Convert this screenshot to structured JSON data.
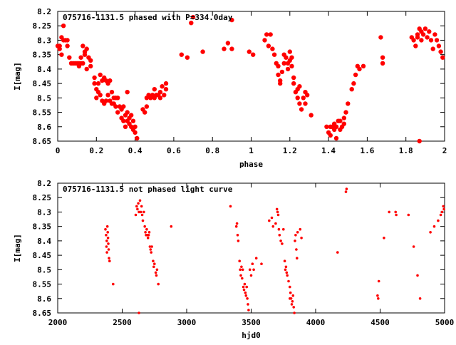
{
  "colors": {
    "points": "#ff0000",
    "axes": "#000000",
    "background": "#ffffff"
  },
  "chart_data": [
    {
      "type": "scatter",
      "title": "075716-1131.5 phased with P=334.0day",
      "xlabel": "phase",
      "ylabel": "I[mag]",
      "xlim": [
        0,
        2
      ],
      "ylim": [
        8.2,
        8.65
      ],
      "y_inverted": true,
      "grid": false,
      "legend": "none",
      "marker": "filled-circle-large",
      "x_ticks": [
        0,
        0.2,
        0.4,
        0.6,
        0.8,
        1,
        1.2,
        1.4,
        1.6,
        1.8,
        2
      ],
      "x_tick_labels": [
        "0",
        "0.2",
        "0.4",
        "0.6",
        "0.8",
        "1",
        "1.2",
        "1.4",
        "1.6",
        "1.8",
        "2"
      ],
      "y_ticks": [
        8.2,
        8.25,
        8.3,
        8.35,
        8.4,
        8.45,
        8.5,
        8.55,
        8.6,
        8.65
      ],
      "y_tick_labels": [
        "8.2",
        "8.25",
        "8.3",
        "8.35",
        "8.4",
        "8.45",
        "8.5",
        "8.55",
        "8.6",
        "8.65"
      ],
      "points": [
        [
          0.0,
          8.32
        ],
        [
          0.01,
          8.32
        ],
        [
          0.01,
          8.33
        ],
        [
          0.02,
          8.35
        ],
        [
          0.02,
          8.29
        ],
        [
          0.03,
          8.3
        ],
        [
          0.03,
          8.25
        ],
        [
          0.04,
          8.3
        ],
        [
          0.05,
          8.3
        ],
        [
          0.05,
          8.32
        ],
        [
          0.06,
          8.36
        ],
        [
          0.07,
          8.38
        ],
        [
          0.08,
          8.38
        ],
        [
          0.09,
          8.38
        ],
        [
          0.1,
          8.38
        ],
        [
          0.11,
          8.38
        ],
        [
          0.11,
          8.39
        ],
        [
          0.12,
          8.38
        ],
        [
          0.12,
          8.36
        ],
        [
          0.13,
          8.32
        ],
        [
          0.13,
          8.38
        ],
        [
          0.14,
          8.35
        ],
        [
          0.14,
          8.34
        ],
        [
          0.15,
          8.33
        ],
        [
          0.15,
          8.4
        ],
        [
          0.16,
          8.36
        ],
        [
          0.17,
          8.37
        ],
        [
          0.17,
          8.39
        ],
        [
          0.19,
          8.43
        ],
        [
          0.19,
          8.45
        ],
        [
          0.2,
          8.47
        ],
        [
          0.2,
          8.5
        ],
        [
          0.21,
          8.48
        ],
        [
          0.21,
          8.45
        ],
        [
          0.22,
          8.42
        ],
        [
          0.22,
          8.49
        ],
        [
          0.23,
          8.51
        ],
        [
          0.23,
          8.44
        ],
        [
          0.24,
          8.43
        ],
        [
          0.24,
          8.52
        ],
        [
          0.25,
          8.44
        ],
        [
          0.25,
          8.51
        ],
        [
          0.26,
          8.45
        ],
        [
          0.26,
          8.49
        ],
        [
          0.27,
          8.51
        ],
        [
          0.27,
          8.44
        ],
        [
          0.28,
          8.48
        ],
        [
          0.28,
          8.52
        ],
        [
          0.29,
          8.5
        ],
        [
          0.29,
          8.52
        ],
        [
          0.3,
          8.53
        ],
        [
          0.3,
          8.5
        ],
        [
          0.31,
          8.55
        ],
        [
          0.31,
          8.5
        ],
        [
          0.32,
          8.53
        ],
        [
          0.33,
          8.54
        ],
        [
          0.33,
          8.57
        ],
        [
          0.34,
          8.58
        ],
        [
          0.34,
          8.53
        ],
        [
          0.35,
          8.56
        ],
        [
          0.35,
          8.6
        ],
        [
          0.36,
          8.55
        ],
        [
          0.36,
          8.58
        ],
        [
          0.37,
          8.57
        ],
        [
          0.37,
          8.59
        ],
        [
          0.38,
          8.56
        ],
        [
          0.38,
          8.6
        ],
        [
          0.39,
          8.61
        ],
        [
          0.39,
          8.58
        ],
        [
          0.4,
          8.6
        ],
        [
          0.4,
          8.62
        ],
        [
          0.41,
          8.64
        ],
        [
          0.36,
          8.48
        ],
        [
          0.44,
          8.54
        ],
        [
          0.45,
          8.55
        ],
        [
          0.46,
          8.53
        ],
        [
          0.46,
          8.5
        ],
        [
          0.47,
          8.49
        ],
        [
          0.48,
          8.5
        ],
        [
          0.49,
          8.49
        ],
        [
          0.5,
          8.5
        ],
        [
          0.5,
          8.47
        ],
        [
          0.51,
          8.49
        ],
        [
          0.52,
          8.49
        ],
        [
          0.53,
          8.5
        ],
        [
          0.53,
          8.48
        ],
        [
          0.54,
          8.46
        ],
        [
          0.55,
          8.49
        ],
        [
          0.56,
          8.45
        ],
        [
          0.56,
          8.47
        ],
        [
          0.64,
          8.35
        ],
        [
          0.67,
          8.36
        ],
        [
          0.69,
          8.24
        ],
        [
          0.7,
          8.22
        ],
        [
          0.75,
          8.34
        ],
        [
          0.86,
          8.33
        ],
        [
          0.88,
          8.31
        ],
        [
          0.9,
          8.23
        ],
        [
          0.9,
          8.33
        ],
        [
          0.99,
          8.34
        ],
        [
          1.01,
          8.35
        ],
        [
          1.07,
          8.3
        ],
        [
          1.08,
          8.28
        ],
        [
          1.09,
          8.32
        ],
        [
          1.1,
          8.28
        ],
        [
          1.11,
          8.33
        ],
        [
          1.12,
          8.35
        ],
        [
          1.13,
          8.38
        ],
        [
          1.14,
          8.39
        ],
        [
          1.14,
          8.42
        ],
        [
          1.15,
          8.44
        ],
        [
          1.15,
          8.45
        ],
        [
          1.16,
          8.41
        ],
        [
          1.17,
          8.38
        ],
        [
          1.17,
          8.35
        ],
        [
          1.18,
          8.36
        ],
        [
          1.19,
          8.38
        ],
        [
          1.19,
          8.4
        ],
        [
          1.2,
          8.34
        ],
        [
          1.2,
          8.37
        ],
        [
          1.21,
          8.39
        ],
        [
          1.21,
          8.36
        ],
        [
          1.22,
          8.43
        ],
        [
          1.22,
          8.45
        ],
        [
          1.23,
          8.48
        ],
        [
          1.24,
          8.47
        ],
        [
          1.24,
          8.5
        ],
        [
          1.25,
          8.46
        ],
        [
          1.25,
          8.52
        ],
        [
          1.26,
          8.54
        ],
        [
          1.27,
          8.5
        ],
        [
          1.28,
          8.48
        ],
        [
          1.28,
          8.52
        ],
        [
          1.29,
          8.49
        ],
        [
          1.31,
          8.56
        ],
        [
          1.39,
          8.6
        ],
        [
          1.4,
          8.62
        ],
        [
          1.41,
          8.6
        ],
        [
          1.41,
          8.63
        ],
        [
          1.42,
          8.6
        ],
        [
          1.43,
          8.61
        ],
        [
          1.43,
          8.59
        ],
        [
          1.44,
          8.64
        ],
        [
          1.44,
          8.6
        ],
        [
          1.45,
          8.58
        ],
        [
          1.46,
          8.61
        ],
        [
          1.46,
          8.58
        ],
        [
          1.47,
          8.6
        ],
        [
          1.48,
          8.57
        ],
        [
          1.48,
          8.59
        ],
        [
          1.49,
          8.55
        ],
        [
          1.5,
          8.52
        ],
        [
          1.52,
          8.47
        ],
        [
          1.53,
          8.45
        ],
        [
          1.54,
          8.42
        ],
        [
          1.55,
          8.39
        ],
        [
          1.56,
          8.4
        ],
        [
          1.58,
          8.39
        ],
        [
          1.67,
          8.29
        ],
        [
          1.68,
          8.36
        ],
        [
          1.68,
          8.38
        ],
        [
          1.83,
          8.29
        ],
        [
          1.84,
          8.3
        ],
        [
          1.85,
          8.32
        ],
        [
          1.86,
          8.28
        ],
        [
          1.86,
          8.29
        ],
        [
          1.87,
          8.26
        ],
        [
          1.88,
          8.3
        ],
        [
          1.88,
          8.27
        ],
        [
          1.89,
          8.28
        ],
        [
          1.9,
          8.26
        ],
        [
          1.91,
          8.29
        ],
        [
          1.92,
          8.27
        ],
        [
          1.93,
          8.3
        ],
        [
          1.94,
          8.33
        ],
        [
          1.95,
          8.28
        ],
        [
          1.96,
          8.3
        ],
        [
          1.97,
          8.32
        ],
        [
          1.98,
          8.34
        ],
        [
          1.99,
          8.36
        ],
        [
          1.87,
          8.65
        ]
      ]
    },
    {
      "type": "scatter",
      "title": "075716-1131.5 not phased light curve",
      "xlabel": "hjd0",
      "ylabel": "I[mag]",
      "xlim": [
        2000,
        5000
      ],
      "ylim": [
        8.2,
        8.65
      ],
      "y_inverted": true,
      "grid": false,
      "legend": "none",
      "marker": "filled-circle-small",
      "x_ticks": [
        2000,
        2500,
        3000,
        3500,
        4000,
        4500,
        5000
      ],
      "x_tick_labels": [
        "2000",
        "2500",
        "3000",
        "3500",
        "4000",
        "4500",
        "5000"
      ],
      "y_ticks": [
        8.2,
        8.25,
        8.3,
        8.35,
        8.4,
        8.45,
        8.5,
        8.55,
        8.6,
        8.65
      ],
      "y_tick_labels": [
        "8.2",
        "8.25",
        "8.3",
        "8.35",
        "8.4",
        "8.45",
        "8.5",
        "8.55",
        "8.6",
        "8.65"
      ],
      "points": [
        [
          2370,
          8.36
        ],
        [
          2375,
          8.38
        ],
        [
          2378,
          8.42
        ],
        [
          2380,
          8.4
        ],
        [
          2382,
          8.44
        ],
        [
          2385,
          8.35
        ],
        [
          2388,
          8.37
        ],
        [
          2390,
          8.39
        ],
        [
          2392,
          8.41
        ],
        [
          2395,
          8.43
        ],
        [
          2398,
          8.46
        ],
        [
          2402,
          8.47
        ],
        [
          2430,
          8.55
        ],
        [
          2605,
          8.31
        ],
        [
          2612,
          8.28
        ],
        [
          2618,
          8.29
        ],
        [
          2625,
          8.27
        ],
        [
          2630,
          8.3
        ],
        [
          2638,
          8.26
        ],
        [
          2645,
          8.3
        ],
        [
          2650,
          8.28
        ],
        [
          2655,
          8.31
        ],
        [
          2660,
          8.33
        ],
        [
          2668,
          8.3
        ],
        [
          2675,
          8.35
        ],
        [
          2680,
          8.37
        ],
        [
          2685,
          8.38
        ],
        [
          2690,
          8.36
        ],
        [
          2695,
          8.38
        ],
        [
          2700,
          8.39
        ],
        [
          2705,
          8.38
        ],
        [
          2710,
          8.37
        ],
        [
          2715,
          8.42
        ],
        [
          2720,
          8.43
        ],
        [
          2725,
          8.44
        ],
        [
          2730,
          8.42
        ],
        [
          2740,
          8.47
        ],
        [
          2745,
          8.49
        ],
        [
          2750,
          8.48
        ],
        [
          2760,
          8.51
        ],
        [
          2765,
          8.52
        ],
        [
          2770,
          8.5
        ],
        [
          2780,
          8.55
        ],
        [
          2630,
          8.65
        ],
        [
          2880,
          8.35
        ],
        [
          3340,
          8.28
        ],
        [
          3385,
          8.35
        ],
        [
          3390,
          8.34
        ],
        [
          3395,
          8.38
        ],
        [
          3400,
          8.4
        ],
        [
          3410,
          8.47
        ],
        [
          3415,
          8.5
        ],
        [
          3420,
          8.52
        ],
        [
          3425,
          8.49
        ],
        [
          3430,
          8.53
        ],
        [
          3435,
          8.5
        ],
        [
          3440,
          8.56
        ],
        [
          3445,
          8.57
        ],
        [
          3450,
          8.55
        ],
        [
          3455,
          8.58
        ],
        [
          3460,
          8.59
        ],
        [
          3465,
          8.56
        ],
        [
          3470,
          8.6
        ],
        [
          3475,
          8.62
        ],
        [
          3480,
          8.64
        ],
        [
          3490,
          8.5
        ],
        [
          3500,
          8.52
        ],
        [
          3510,
          8.48
        ],
        [
          3520,
          8.5
        ],
        [
          3540,
          8.46
        ],
        [
          3580,
          8.48
        ],
        [
          3640,
          8.33
        ],
        [
          3660,
          8.32
        ],
        [
          3670,
          8.35
        ],
        [
          3690,
          8.34
        ],
        [
          3700,
          8.29
        ],
        [
          3705,
          8.3
        ],
        [
          3710,
          8.31
        ],
        [
          3715,
          8.36
        ],
        [
          3720,
          8.38
        ],
        [
          3730,
          8.4
        ],
        [
          3740,
          8.41
        ],
        [
          3750,
          8.36
        ],
        [
          3760,
          8.47
        ],
        [
          3765,
          8.5
        ],
        [
          3770,
          8.49
        ],
        [
          3775,
          8.51
        ],
        [
          3780,
          8.52
        ],
        [
          3790,
          8.54
        ],
        [
          3800,
          8.56
        ],
        [
          3805,
          8.58
        ],
        [
          3810,
          8.6
        ],
        [
          3815,
          8.62
        ],
        [
          3820,
          8.61
        ],
        [
          3825,
          8.59
        ],
        [
          3830,
          8.63
        ],
        [
          3835,
          8.65
        ],
        [
          3840,
          8.4
        ],
        [
          3845,
          8.38
        ],
        [
          3850,
          8.43
        ],
        [
          3855,
          8.46
        ],
        [
          3860,
          8.37
        ],
        [
          3880,
          8.36
        ],
        [
          3890,
          8.39
        ],
        [
          3800,
          8.6
        ],
        [
          4170,
          8.44
        ],
        [
          4235,
          8.23
        ],
        [
          4240,
          8.22
        ],
        [
          4480,
          8.59
        ],
        [
          4485,
          8.6
        ],
        [
          4490,
          8.54
        ],
        [
          4530,
          8.39
        ],
        [
          4570,
          8.3
        ],
        [
          4620,
          8.3
        ],
        [
          4625,
          8.31
        ],
        [
          4720,
          8.31
        ],
        [
          4760,
          8.42
        ],
        [
          4790,
          8.52
        ],
        [
          4810,
          8.6
        ],
        [
          4890,
          8.37
        ],
        [
          4920,
          8.35
        ],
        [
          4950,
          8.33
        ],
        [
          4970,
          8.31
        ],
        [
          4980,
          8.3
        ],
        [
          4990,
          8.28
        ],
        [
          4995,
          8.29
        ]
      ]
    }
  ]
}
